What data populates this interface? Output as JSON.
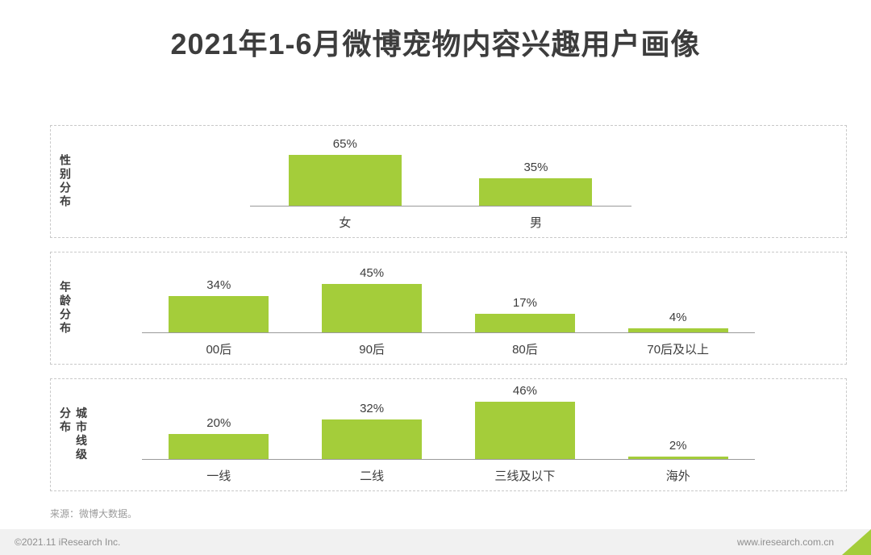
{
  "title": "2021年1-6月微博宠物内容兴趣用户画像",
  "source_note": "来源：微博大数据。",
  "footer": {
    "left": "©2021.11 iResearch Inc.",
    "right": "www.iresearch.com.cn"
  },
  "colors": {
    "bar": "#a4cd3a",
    "accent": "#a4cd3a",
    "title_text": "#3d3d3d",
    "axis_line": "#9a9a9a"
  },
  "chart_data": [
    {
      "type": "bar",
      "panel_label": "性别分布",
      "categories": [
        "女",
        "男"
      ],
      "values": [
        65,
        35
      ],
      "unit": "%",
      "title": "性别分布",
      "xlabel": "",
      "ylabel": "",
      "ylim": [
        0,
        65
      ],
      "grid": false,
      "legend": "none",
      "data_labels": true
    },
    {
      "type": "bar",
      "panel_label": "年龄分布",
      "categories": [
        "00后",
        "90后",
        "80后",
        "70后及以上"
      ],
      "values": [
        34,
        45,
        17,
        4
      ],
      "unit": "%",
      "title": "年龄分布",
      "xlabel": "",
      "ylabel": "",
      "ylim": [
        0,
        45
      ],
      "grid": false,
      "legend": "none",
      "data_labels": true
    },
    {
      "type": "bar",
      "panel_label": "城市线级分布",
      "categories": [
        "一线",
        "二线",
        "三线及以下",
        "海外"
      ],
      "values": [
        20,
        32,
        46,
        2
      ],
      "unit": "%",
      "title": "城市线级分布",
      "xlabel": "",
      "ylabel": "",
      "ylim": [
        0,
        46
      ],
      "grid": false,
      "legend": "none",
      "data_labels": true
    }
  ]
}
